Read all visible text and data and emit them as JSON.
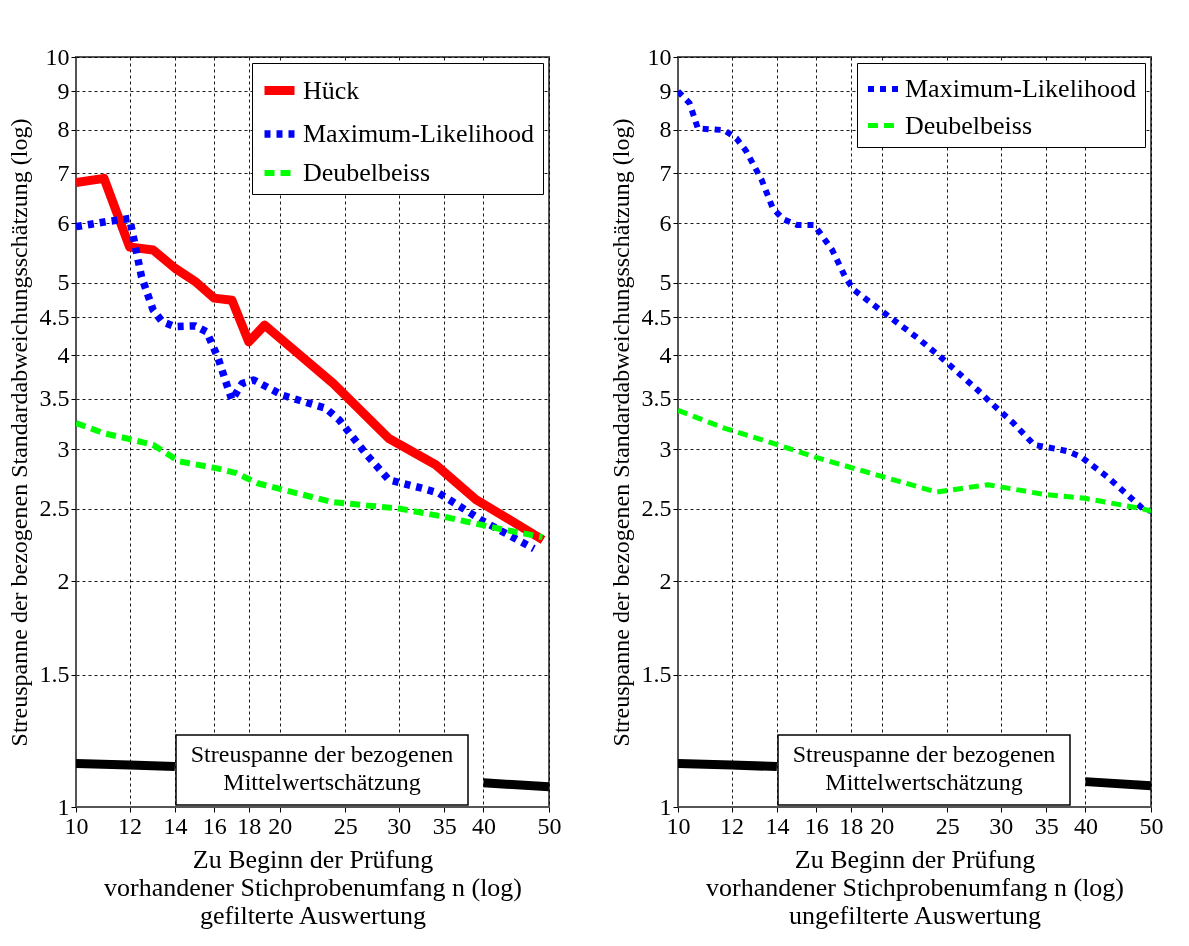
{
  "chart_data": [
    {
      "type": "line",
      "xlabel": "Zu Beginn der Prüfung\nvorhandener Stichprobenumfang n (log)\ngefilterte Auswertung",
      "ylabel": "Streuspanne der bezogenen Standardabweichungsschätzung (log)",
      "log": "xy",
      "grid": true,
      "legend": "top right",
      "xlim": [
        10,
        50
      ],
      "ylim": [
        1,
        10
      ],
      "xticks": [
        10,
        12,
        14,
        16,
        18,
        20,
        25,
        30,
        35,
        40,
        50
      ],
      "yticks": [
        1,
        1.5,
        2,
        2.5,
        3,
        3.5,
        4,
        4.5,
        5,
        6,
        7,
        8,
        9,
        10
      ],
      "series": [
        {
          "name": "Hück",
          "color": "#ff0000",
          "line_style": "solid",
          "x": [
            10,
            11,
            12,
            13,
            14,
            15,
            16,
            17,
            18,
            19,
            24,
            29,
            34,
            39,
            49
          ],
          "values": [
            6.8,
            6.89,
            5.58,
            5.53,
            5.23,
            5.02,
            4.77,
            4.74,
            4.17,
            4.39,
            3.67,
            3.1,
            2.86,
            2.57,
            2.27
          ]
        },
        {
          "name": "Maximum-Likelihood",
          "color": "#0000ff",
          "line_style": "dotted",
          "x": [
            10,
            11.2,
            12,
            12.5,
            13,
            13.4,
            14,
            15,
            15.6,
            16.2,
            16.8,
            17,
            17.6,
            18.3,
            20.2,
            23.4,
            24.5,
            26.8,
            29,
            32.5,
            34.4,
            39.8,
            47.5
          ],
          "values": [
            5.94,
            6.04,
            6.09,
            5.09,
            4.6,
            4.44,
            4.37,
            4.38,
            4.3,
            3.98,
            3.6,
            3.49,
            3.67,
            3.71,
            3.54,
            3.4,
            3.28,
            2.96,
            2.73,
            2.66,
            2.62,
            2.41,
            2.21
          ]
        },
        {
          "name": "Deubelbeiss",
          "color": "#00ff00",
          "line_style": "dashed",
          "x": [
            10,
            11,
            11.9,
            13,
            14.2,
            16.1,
            17.2,
            18.6,
            23.9,
            30,
            34.8,
            42.2,
            48.9
          ],
          "values": [
            3.25,
            3.15,
            3.1,
            3.04,
            2.89,
            2.83,
            2.79,
            2.7,
            2.55,
            2.5,
            2.44,
            2.35,
            2.29
          ]
        },
        {
          "color": "#000000",
          "line_style": "solid",
          "x": [
            10,
            12,
            14,
            25,
            40,
            50
          ],
          "values": [
            1.143,
            1.138,
            1.132,
            null,
            1.077,
            1.064
          ]
        }
      ],
      "annotations": [
        "Streuspanne der bezogenen\nMittelwertschätzung"
      ]
    },
    {
      "type": "line",
      "xlabel": "Zu Beginn der Prüfung\nvorhandener Stichprobenumfang n (log)\nungefilterte Auswertung",
      "ylabel": "Streuspanne der bezogenen Standardabweichungsschätzung (log)",
      "log": "xy",
      "grid": true,
      "legend": "top right",
      "xlim": [
        10,
        50
      ],
      "ylim": [
        1,
        10
      ],
      "xticks": [
        10,
        12,
        14,
        16,
        18,
        20,
        25,
        30,
        35,
        40,
        50
      ],
      "yticks": [
        1,
        1.5,
        2,
        2.5,
        3,
        3.5,
        4,
        4.5,
        5,
        6,
        7,
        8,
        9,
        10
      ],
      "series": [
        {
          "name": "Maximum-Likelihood",
          "color": "#0000ff",
          "line_style": "dotted",
          "x": [
            10,
            10.4,
            10.7,
            11.7,
            12.2,
            12.6,
            13.3,
            13.8,
            14.3,
            15,
            15.9,
            16.9,
            17.7,
            18.2,
            19.9,
            22.6,
            24.6,
            27.7,
            28.9,
            31.3,
            33.6,
            36.4,
            37.7,
            39.4,
            43,
            48.6,
            50
          ],
          "values": [
            9.0,
            8.68,
            8.03,
            7.99,
            7.79,
            7.5,
            6.85,
            6.29,
            6.08,
            5.97,
            5.97,
            5.53,
            5.07,
            4.89,
            4.6,
            4.22,
            3.96,
            3.6,
            3.47,
            3.25,
            3.04,
            3.0,
            2.98,
            2.93,
            2.76,
            2.5,
            2.48
          ]
        },
        {
          "name": "Deubelbeiss",
          "color": "#00ff00",
          "line_style": "dashed",
          "x": [
            10,
            11.7,
            14.05,
            15.9,
            19.7,
            24.1,
            28.7,
            34.8,
            39.9,
            48.4,
            50
          ],
          "values": [
            3.38,
            3.2,
            3.04,
            2.93,
            2.77,
            2.63,
            2.69,
            2.61,
            2.58,
            2.5,
            2.48
          ]
        },
        {
          "color": "#000000",
          "line_style": "solid",
          "x": [
            10,
            12,
            14,
            25,
            40,
            50
          ],
          "values": [
            1.143,
            1.138,
            1.132,
            null,
            1.081,
            1.067
          ]
        }
      ],
      "annotations": [
        "Streuspanne der bezogenen\nMittelwertschätzung"
      ]
    }
  ]
}
